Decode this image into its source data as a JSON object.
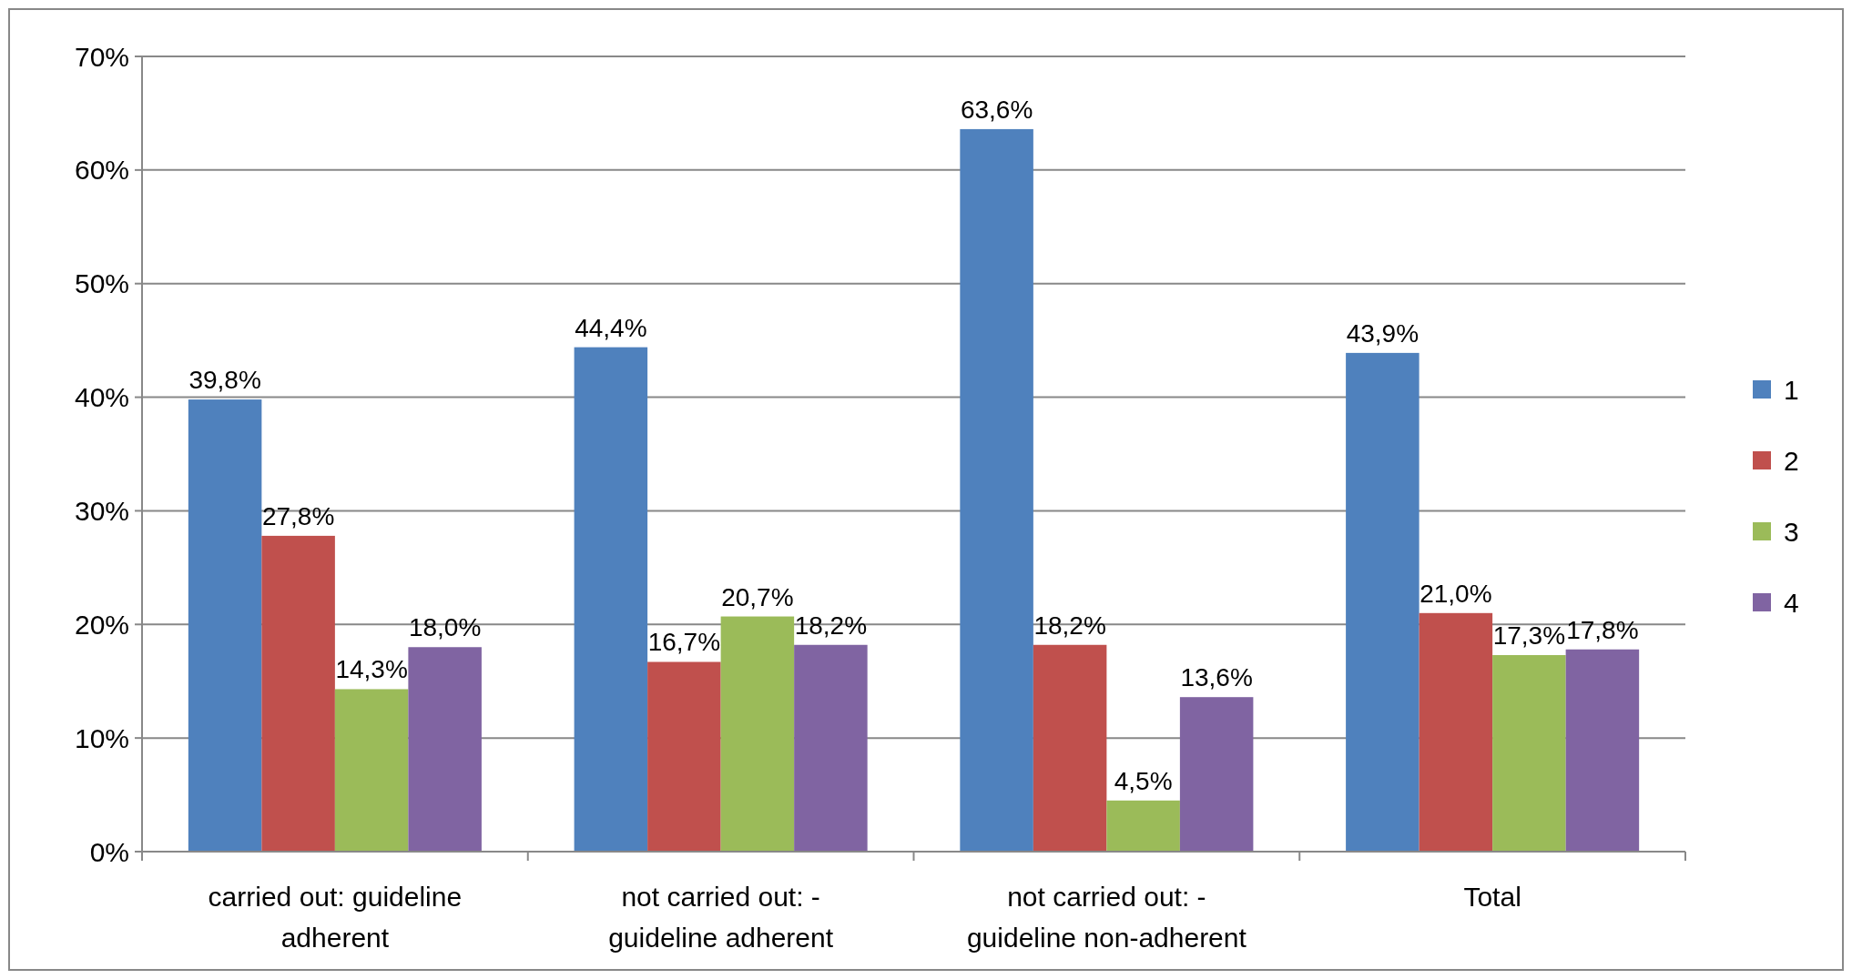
{
  "chart_data": {
    "type": "bar",
    "categories": [
      "carried out:  guideline\nadherent",
      "not carried out: -\nguideline adherent",
      "not carried out: -\nguideline non-adherent",
      "Total"
    ],
    "series": [
      {
        "name": "1",
        "color": "#4f81bd",
        "values": [
          39.8,
          44.4,
          63.6,
          43.9
        ],
        "value_labels": [
          "39,8%",
          "44,4%",
          "63,6%",
          "43,9%"
        ]
      },
      {
        "name": "2",
        "color": "#c0504d",
        "values": [
          27.8,
          16.7,
          18.2,
          21.0
        ],
        "value_labels": [
          "27,8%",
          "16,7%",
          "18,2%",
          "21,0%"
        ]
      },
      {
        "name": "3",
        "color": "#9bbb59",
        "values": [
          14.3,
          20.7,
          4.5,
          17.3
        ],
        "value_labels": [
          "14,3%",
          "20,7%",
          "4,5%",
          "17,3%"
        ]
      },
      {
        "name": "4",
        "color": "#8064a2",
        "values": [
          18.0,
          18.2,
          13.6,
          17.8
        ],
        "value_labels": [
          "18,0%",
          "18,2%",
          "13,6%",
          "17,8%"
        ]
      }
    ],
    "ylim": [
      0,
      70
    ],
    "yticks": [
      {
        "value": 0,
        "label": "0%"
      },
      {
        "value": 10,
        "label": "10%"
      },
      {
        "value": 20,
        "label": "20%"
      },
      {
        "value": 30,
        "label": "30%"
      },
      {
        "value": 40,
        "label": "40%"
      },
      {
        "value": 50,
        "label": "50%"
      },
      {
        "value": 60,
        "label": "60%"
      },
      {
        "value": 70,
        "label": "70%"
      }
    ],
    "grid": "y",
    "legend": "right"
  }
}
